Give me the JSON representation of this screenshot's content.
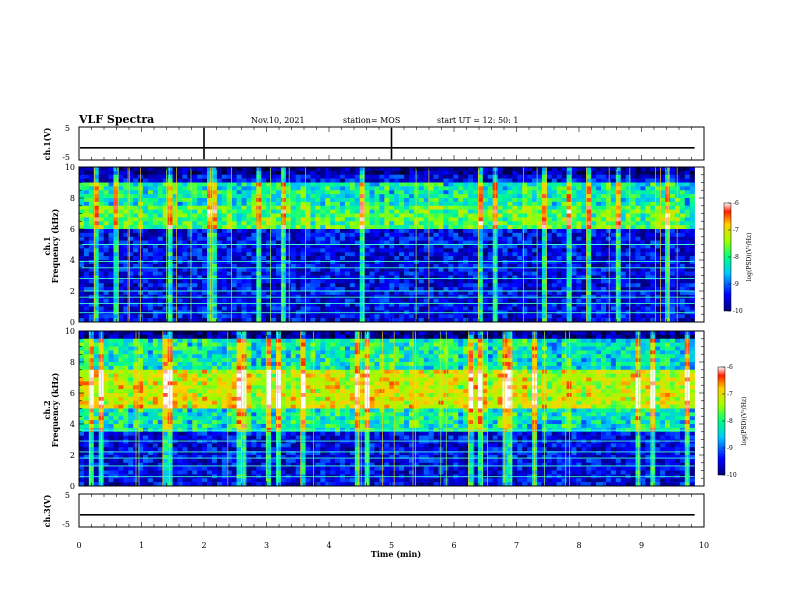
{
  "header": {
    "title": "VLF Spectra",
    "date": "Nov.10, 2021",
    "station": "station= MOS",
    "start": "start  UT =   12: 50: 1"
  },
  "chart_data": [
    {
      "type": "line",
      "panel": "ch1-waveform",
      "ylabel": "ch.1(V)",
      "ylim": [
        -5,
        5
      ],
      "yticks": [
        "5",
        "-5"
      ],
      "trace_level_V": -1.3,
      "spike_times_min": [
        2.0,
        5.0
      ],
      "xlim": [
        0,
        10
      ]
    },
    {
      "type": "heatmap",
      "panel": "ch1-spectrogram",
      "ylabel": "ch.1\nFrequency (kHz)",
      "ylim": [
        0,
        10
      ],
      "yticks": [
        "0",
        "2",
        "4",
        "6",
        "8",
        "10"
      ],
      "xlim": [
        0,
        10
      ],
      "data_end_min": 9.85,
      "upper_band_kHz": [
        6.0,
        9.0
      ],
      "intense_band_kHz": [
        5.0,
        7.5
      ],
      "constant_lines_kHz": [
        0.6,
        1.2,
        1.6,
        2.0,
        2.8,
        3.5,
        3.9,
        5.0
      ],
      "colorbar": {
        "label": "log(PSD)(V²/Hz)",
        "range": [
          -10,
          -6
        ],
        "ticks": [
          "-6",
          "-7",
          "-8",
          "-9",
          "-10"
        ]
      }
    },
    {
      "type": "heatmap",
      "panel": "ch2-spectrogram",
      "ylabel": "ch.2\nFrequency (kHz)",
      "ylim": [
        0,
        10
      ],
      "yticks": [
        "0",
        "2",
        "4",
        "6",
        "8",
        "10"
      ],
      "xlim": [
        0,
        10
      ],
      "data_end_min": 9.85,
      "upper_band_kHz": [
        3.5,
        9.5
      ],
      "intense_band_kHz": [
        5.0,
        7.5
      ],
      "constant_lines_kHz": [
        0.6,
        1.3,
        1.8,
        2.2,
        2.9,
        3.6
      ],
      "colorbar": {
        "label": "log(PSD)(V²/Hz)",
        "range": [
          -10,
          -6
        ],
        "ticks": [
          "-6",
          "-7",
          "-8",
          "-9",
          "-10"
        ]
      }
    },
    {
      "type": "line",
      "panel": "ch3-waveform",
      "ylabel": "ch.3(V)",
      "ylim": [
        -5,
        5
      ],
      "yticks": [
        "5",
        "-5"
      ],
      "trace_level_V": -1.3,
      "xlim": [
        0,
        10
      ],
      "xlabel": "Time  (min)",
      "xticks": [
        "0",
        "1",
        "2",
        "3",
        "4",
        "5",
        "6",
        "7",
        "8",
        "9",
        "10"
      ]
    }
  ]
}
